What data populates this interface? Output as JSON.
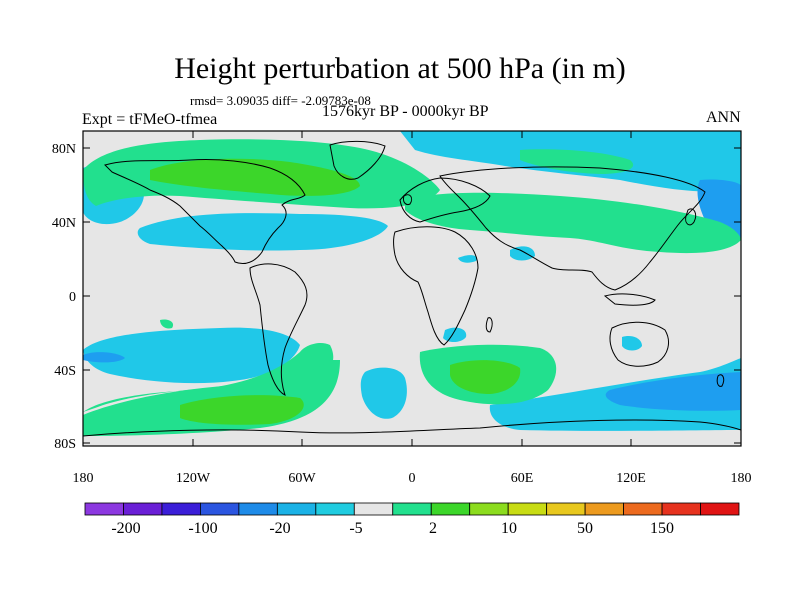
{
  "title": "Height perturbation at 500 hPa (in m)",
  "stats_line": "rmsd= 3.09035 diff= -2.09783e-08",
  "period": "1576kyr BP - 0000kyr BP",
  "experiment": "Expt = tFMeO-tfmea",
  "season": "ANN",
  "lat_labels": [
    "80N",
    "40N",
    "0",
    "40S",
    "80S"
  ],
  "lon_labels": [
    "180",
    "120W",
    "60W",
    "0",
    "60E",
    "120E",
    "180"
  ],
  "colorbar": {
    "colors": [
      "#8c38e0",
      "#6a1fd6",
      "#3b1ed8",
      "#2b55e0",
      "#1e8be8",
      "#1bb2e6",
      "#20cce0",
      "#e6e6e6",
      "#22e08e",
      "#3cd62a",
      "#8cdc1e",
      "#c8dc14",
      "#e8c81e",
      "#ec9a1e",
      "#ec6a1e",
      "#e6321e",
      "#e01414"
    ],
    "labels": [
      "-200",
      "-100",
      "-20",
      "-5",
      "2",
      "10",
      "50",
      "150"
    ]
  },
  "field_colors": {
    "ocean_bg": "#e6e6e6",
    "neg_light": "#20c8e8",
    "neg_mid": "#1e9ef0",
    "pos_light": "#22e08e",
    "pos_mid": "#3cd62a"
  }
}
